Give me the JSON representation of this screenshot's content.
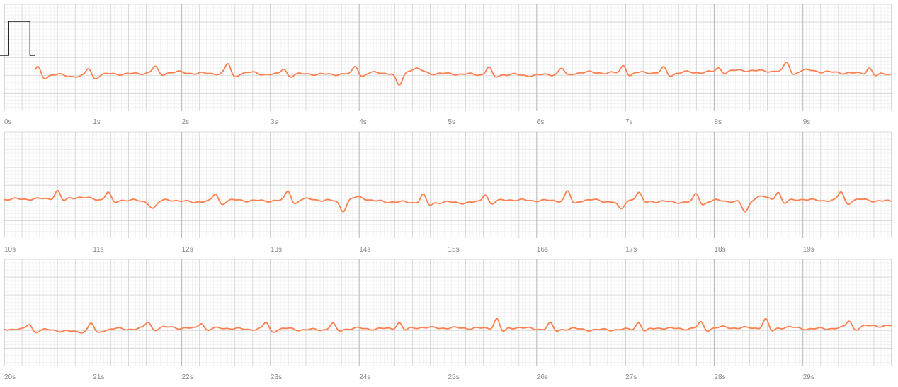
{
  "chart_data": {
    "type": "line",
    "title": "",
    "xlabel": "",
    "ylabel": "",
    "grid": true,
    "x_unit": "s",
    "seconds_per_row": 10,
    "calibration_pulse": true,
    "trace_color": "#ff7f4f",
    "rows": [
      {
        "tick_labels": [
          "0s",
          "1s",
          "2s",
          "3s",
          "4s",
          "5s",
          "6s",
          "7s",
          "8s",
          "9s"
        ],
        "beats": [
          {
            "t": 0.38,
            "a": 0.8
          },
          {
            "t": 0.95,
            "a": 0.8
          },
          {
            "t": 1.7,
            "a": 0.6
          },
          {
            "t": 2.52,
            "a": 1.0
          },
          {
            "t": 3.15,
            "a": 0.6
          },
          {
            "t": 3.96,
            "a": 0.8
          },
          {
            "t": 5.46,
            "a": 0.8
          },
          {
            "t": 6.28,
            "a": 0.6
          },
          {
            "t": 6.98,
            "a": 0.8
          },
          {
            "t": 7.43,
            "a": 0.6
          },
          {
            "t": 8.05,
            "a": 0.4
          },
          {
            "t": 8.82,
            "a": 0.9
          },
          {
            "t": 9.75,
            "a": 0.6
          }
        ],
        "inverted_beats": [
          {
            "t": 4.45,
            "a": 1.2
          }
        ],
        "wander": [
          0.0,
          -0.3,
          0.1,
          0.0,
          -0.1,
          0.0,
          0.0,
          -0.2,
          0.1,
          0.0,
          0.3,
          0.2,
          -0.1
        ]
      },
      {
        "tick_labels": [
          "10s",
          "11s",
          "12s",
          "13s",
          "14s",
          "15s",
          "16s",
          "17s",
          "18s",
          "19s"
        ],
        "beats": [
          {
            "t": 10.6,
            "a": 0.8
          },
          {
            "t": 11.17,
            "a": 0.8
          },
          {
            "t": 12.38,
            "a": 0.8
          },
          {
            "t": 13.2,
            "a": 1.0
          },
          {
            "t": 14.72,
            "a": 0.8
          },
          {
            "t": 15.42,
            "a": 0.8
          },
          {
            "t": 16.35,
            "a": 1.0
          },
          {
            "t": 17.15,
            "a": 0.6
          },
          {
            "t": 17.8,
            "a": 0.8
          },
          {
            "t": 18.72,
            "a": 0.9
          },
          {
            "t": 19.43,
            "a": 0.9
          }
        ],
        "inverted_beats": [
          {
            "t": 11.68,
            "a": 0.6
          },
          {
            "t": 13.82,
            "a": 1.0
          },
          {
            "t": 16.95,
            "a": 0.8
          },
          {
            "t": 18.35,
            "a": 1.1
          }
        ],
        "wander": [
          0.2,
          0.3,
          -0.1,
          0.0,
          0.1,
          0.0,
          -0.2,
          0.1,
          0.0,
          -0.1,
          0.0,
          0.1,
          0.0
        ]
      },
      {
        "tick_labels": [
          "20s",
          "21s",
          "22s",
          "23s",
          "24s",
          "25s",
          "26s",
          "27s",
          "28s",
          "29s"
        ],
        "beats": [
          {
            "t": 20.28,
            "a": 0.6
          },
          {
            "t": 20.98,
            "a": 0.8
          },
          {
            "t": 21.62,
            "a": 0.6
          },
          {
            "t": 22.22,
            "a": 0.6
          },
          {
            "t": 22.95,
            "a": 0.7
          },
          {
            "t": 23.7,
            "a": 0.6
          },
          {
            "t": 24.45,
            "a": 0.6
          },
          {
            "t": 25.55,
            "a": 1.0
          },
          {
            "t": 26.15,
            "a": 0.6
          },
          {
            "t": 27.15,
            "a": 0.7
          },
          {
            "t": 27.85,
            "a": 0.6
          },
          {
            "t": 28.58,
            "a": 0.9
          },
          {
            "t": 29.52,
            "a": 0.7
          }
        ],
        "inverted_beats": [],
        "wander": [
          0.0,
          -0.3,
          0.1,
          0.0,
          -0.1,
          0.0,
          0.1,
          0.0,
          -0.1,
          0.0,
          0.1,
          0.0,
          0.3
        ]
      }
    ]
  }
}
